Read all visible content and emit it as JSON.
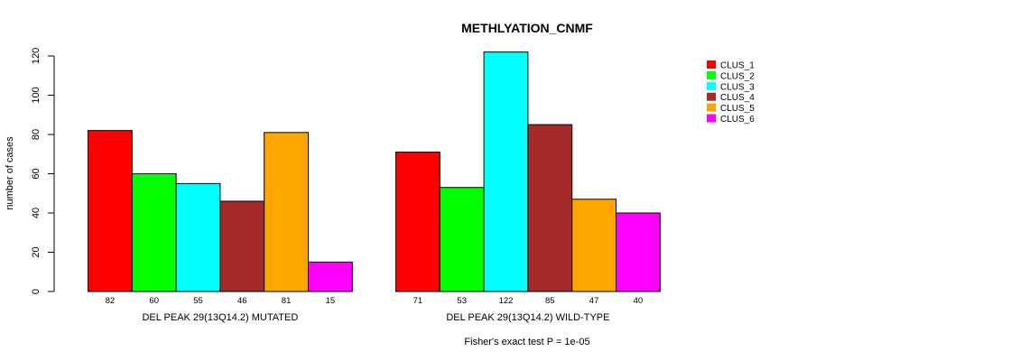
{
  "chart_data": {
    "type": "bar",
    "title": "METHLYATION_CNMF",
    "ylabel": "number of cases",
    "ylim": [
      0,
      120
    ],
    "yticks": [
      0,
      20,
      40,
      60,
      80,
      100,
      120
    ],
    "groups": [
      "DEL PEAK 29(13Q14.2) MUTATED",
      "DEL PEAK 29(13Q14.2) WILD-TYPE"
    ],
    "series": [
      {
        "name": "CLUS_1",
        "color": "#ff0000",
        "values": [
          82,
          71
        ]
      },
      {
        "name": "CLUS_2",
        "color": "#00ff00",
        "values": [
          60,
          53
        ]
      },
      {
        "name": "CLUS_3",
        "color": "#00ffff",
        "values": [
          55,
          122
        ]
      },
      {
        "name": "CLUS_4",
        "color": "#a52a2a",
        "values": [
          46,
          85
        ]
      },
      {
        "name": "CLUS_5",
        "color": "#ffa500",
        "values": [
          81,
          47
        ]
      },
      {
        "name": "CLUS_6",
        "color": "#ff00ff",
        "values": [
          15,
          40
        ]
      }
    ],
    "count_labels": [
      [
        "82",
        "60",
        "55",
        "46",
        "81",
        "15"
      ],
      [
        "71",
        "53",
        "122",
        "85",
        "47",
        "40"
      ]
    ],
    "footnote": "Fisher's exact test P = 1e-05",
    "legend_position": "top-right",
    "grid": false
  }
}
